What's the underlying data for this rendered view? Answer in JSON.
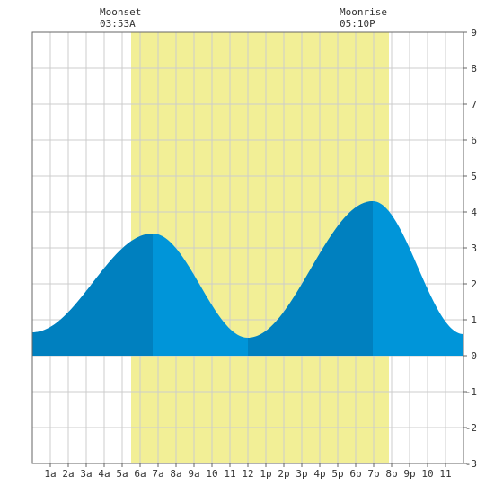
{
  "chart_data": {
    "type": "area",
    "x_unit": "hour of day",
    "ylim": [
      -3,
      9
    ],
    "xlim": [
      0,
      24
    ],
    "grid": true,
    "y_ticks": [
      "-3",
      "-2",
      "-1",
      "0",
      "1",
      "2",
      "3",
      "4",
      "5",
      "6",
      "7",
      "8",
      "9"
    ],
    "x_ticks": [
      "1a",
      "2a",
      "3a",
      "4a",
      "5a",
      "6a",
      "7a",
      "8a",
      "9a",
      "10",
      "11",
      "12",
      "1p",
      "2p",
      "3p",
      "4p",
      "5p",
      "6p",
      "7p",
      "8p",
      "9p",
      "10",
      "11"
    ],
    "moonset": {
      "label": "Moonset",
      "time": "03:53A"
    },
    "moonrise": {
      "label": "Moonrise",
      "time": "05:10P"
    },
    "moon_visible_from": 5.5,
    "moon_visible_to": 19.85,
    "tide_extremes": [
      {
        "x": 0.0,
        "y": 0.65
      },
      {
        "x": 6.7,
        "y": 3.4
      },
      {
        "x": 12.0,
        "y": 0.5
      },
      {
        "x": 18.95,
        "y": 4.3
      },
      {
        "x": 24.0,
        "y": 0.6
      }
    ],
    "dark_segments": [
      [
        0,
        6.7
      ],
      [
        12.0,
        18.95
      ]
    ],
    "colors": {
      "moon_band": "#f2ef96",
      "tide_light": "#0095d9",
      "tide_dark": "#0080bf",
      "grid": "#cccccc"
    }
  }
}
